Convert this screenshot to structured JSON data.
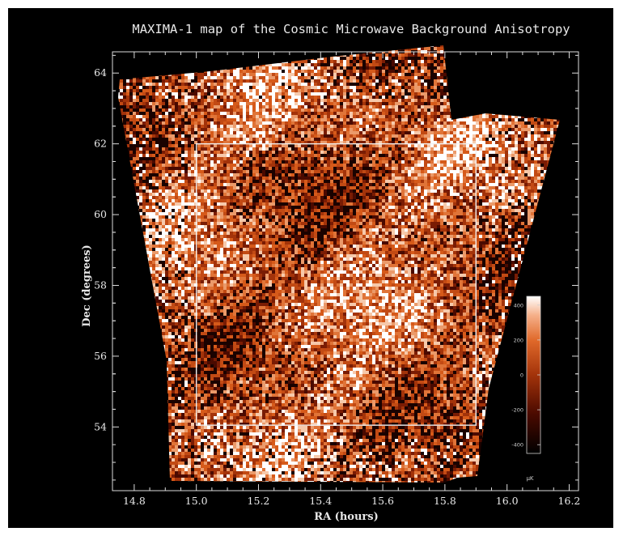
{
  "chart_data": {
    "type": "heatmap",
    "title": "MAXIMA-1 map of the Cosmic Microwave Background Anisotropy",
    "xlabel": "RA (hours)",
    "ylabel": "Dec (degrees)",
    "xlim": [
      14.73,
      16.23
    ],
    "ylim": [
      52.2,
      64.6
    ],
    "x_ticks": [
      "14.8",
      "15.0",
      "15.2",
      "15.4",
      "15.6",
      "15.8",
      "16.0",
      "16.2"
    ],
    "x_tick_values": [
      14.8,
      15.0,
      15.2,
      15.4,
      15.6,
      15.8,
      16.0,
      16.2
    ],
    "y_ticks": [
      "54",
      "56",
      "58",
      "60",
      "62",
      "64"
    ],
    "y_tick_values": [
      54,
      56,
      58,
      60,
      62,
      64
    ],
    "box_region": {
      "ra_range": [
        15.0,
        15.9
      ],
      "dec_range": [
        54.05,
        62.0
      ]
    },
    "colorbar": {
      "ticks": [
        "400",
        "200",
        "0",
        "-200",
        "-400"
      ],
      "tick_values": [
        400,
        200,
        0,
        -200,
        -400
      ],
      "range": [
        -450,
        450
      ],
      "unit": "μK"
    },
    "colormap": [
      "#000000",
      "#5a0e00",
      "#a3330a",
      "#d65a1a",
      "#f09060",
      "#ffffff"
    ]
  }
}
